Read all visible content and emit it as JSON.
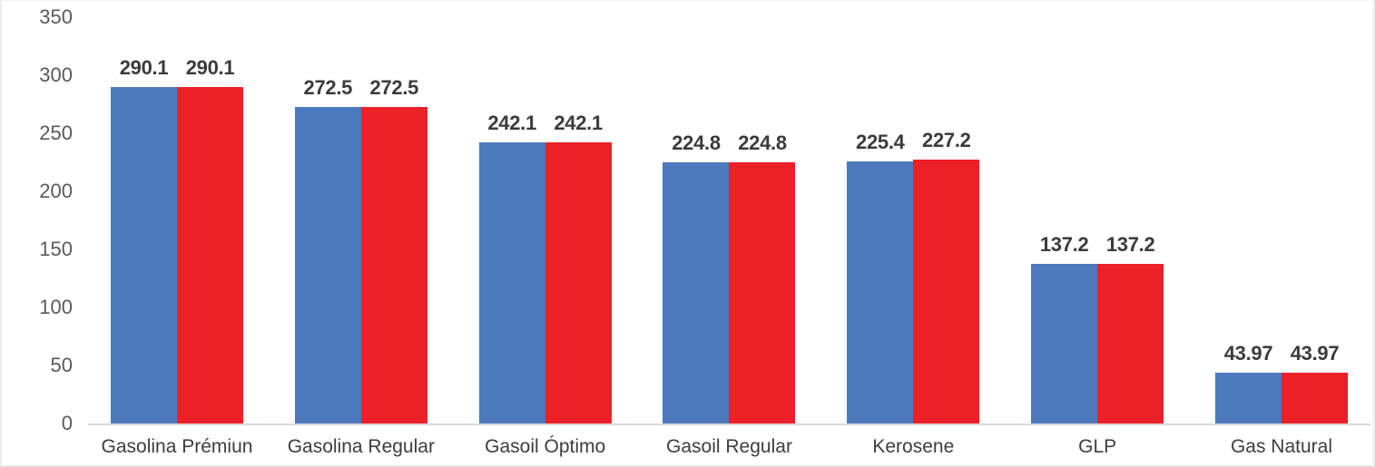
{
  "chart_data": {
    "type": "bar",
    "categories": [
      "Gasolina Prémiun",
      "Gasolina Regular",
      "Gasoil Óptimo",
      "Gasoil Regular",
      "Kerosene",
      "GLP",
      "Gas Natural"
    ],
    "series": [
      {
        "name": "series-blue",
        "color": "#4D79BE",
        "values": [
          290.1,
          272.5,
          242.1,
          224.8,
          225.4,
          137.2,
          43.97
        ],
        "labels": [
          "290.1",
          "272.5",
          "242.1",
          "224.8",
          "225.4",
          "137.2",
          "43.97"
        ]
      },
      {
        "name": "series-red",
        "color": "#EC2027",
        "values": [
          290.1,
          272.5,
          242.1,
          224.8,
          227.2,
          137.2,
          43.97
        ],
        "labels": [
          "290.1",
          "272.5",
          "242.1",
          "224.8",
          "227.2",
          "137.2",
          "43.97"
        ]
      }
    ],
    "ylim": [
      0,
      350
    ],
    "yticks": [
      "0",
      "50",
      "100",
      "150",
      "200",
      "250",
      "300",
      "350"
    ],
    "grid": false,
    "legend": "none",
    "data_labels": true,
    "colors": {
      "axis_line": "#D9D9D9",
      "tick_text": "#595959",
      "data_label_text": "#3B3B3B",
      "category_text": "#3D3D3D",
      "background": "#FFFFFF"
    }
  }
}
